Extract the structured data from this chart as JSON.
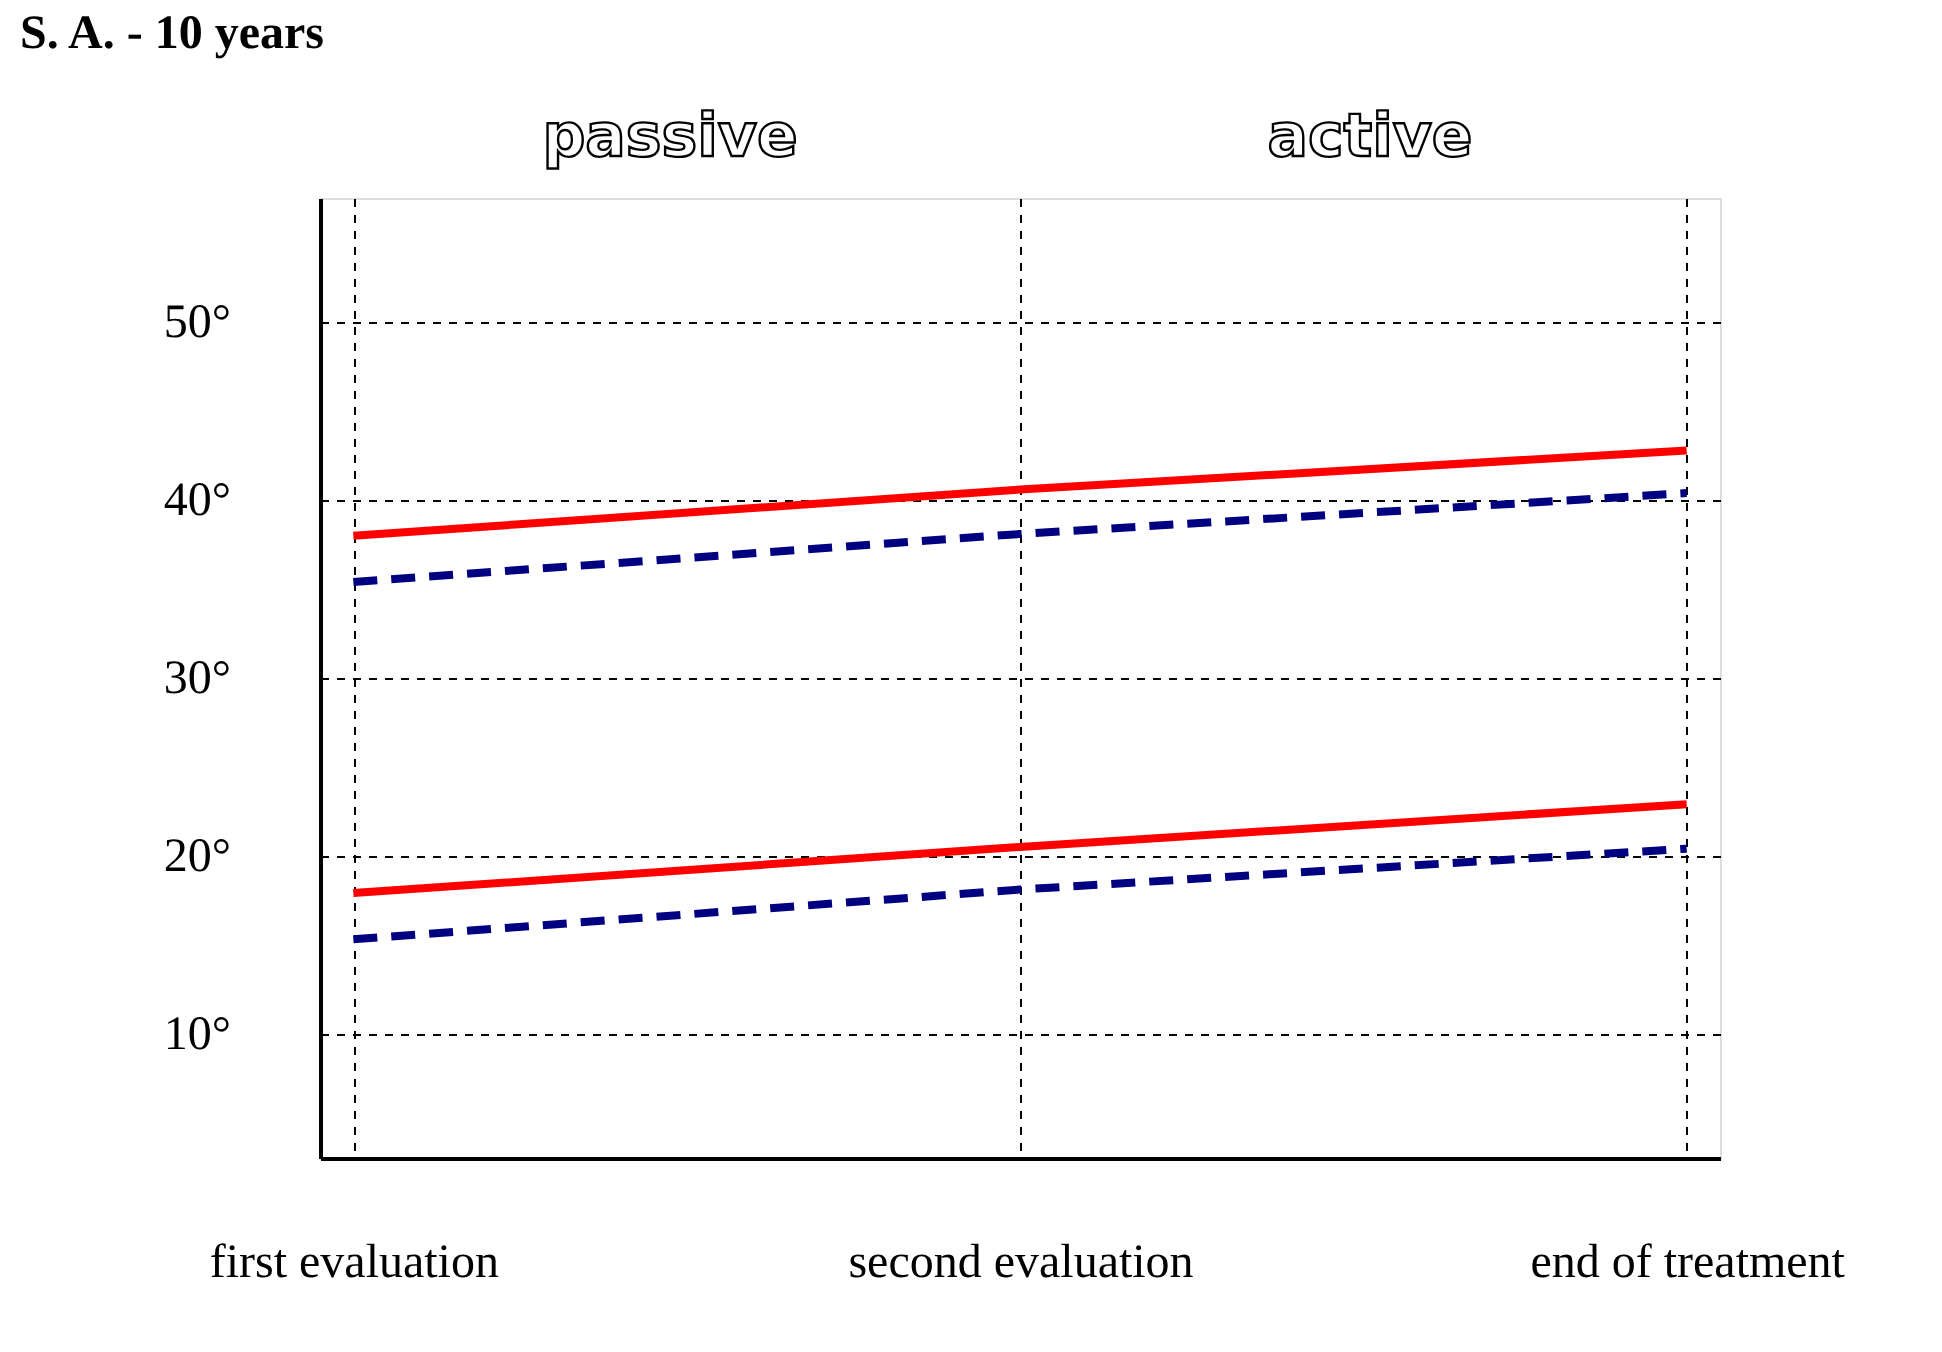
{
  "chart_data": {
    "type": "line",
    "title": "S. A. - 10 years",
    "categories": [
      "first evaluation",
      "second evaluation",
      "end of treatment"
    ],
    "series": [
      {
        "color": "#ff0000",
        "line_style": "solid",
        "values": [
          38.0,
          40.6,
          42.8
        ]
      },
      {
        "color": "#000080",
        "line_style": "dashed",
        "values": [
          35.4,
          38.1,
          40.4
        ]
      },
      {
        "color": "#ff0000",
        "line_style": "solid",
        "values": [
          17.9,
          20.5,
          22.9
        ]
      },
      {
        "color": "#000080",
        "line_style": "dashed",
        "values": [
          15.3,
          18.1,
          20.4
        ]
      }
    ],
    "ylim": [
      3,
      57
    ],
    "yticks": [
      {
        "value": 10,
        "label": "10°"
      },
      {
        "value": 20,
        "label": "20°"
      },
      {
        "value": 30,
        "label": "30°"
      },
      {
        "value": 40,
        "label": "40°"
      },
      {
        "value": 50,
        "label": "50°"
      }
    ],
    "grid": true,
    "marker": "none",
    "annotations": [
      "passive",
      "active"
    ]
  }
}
